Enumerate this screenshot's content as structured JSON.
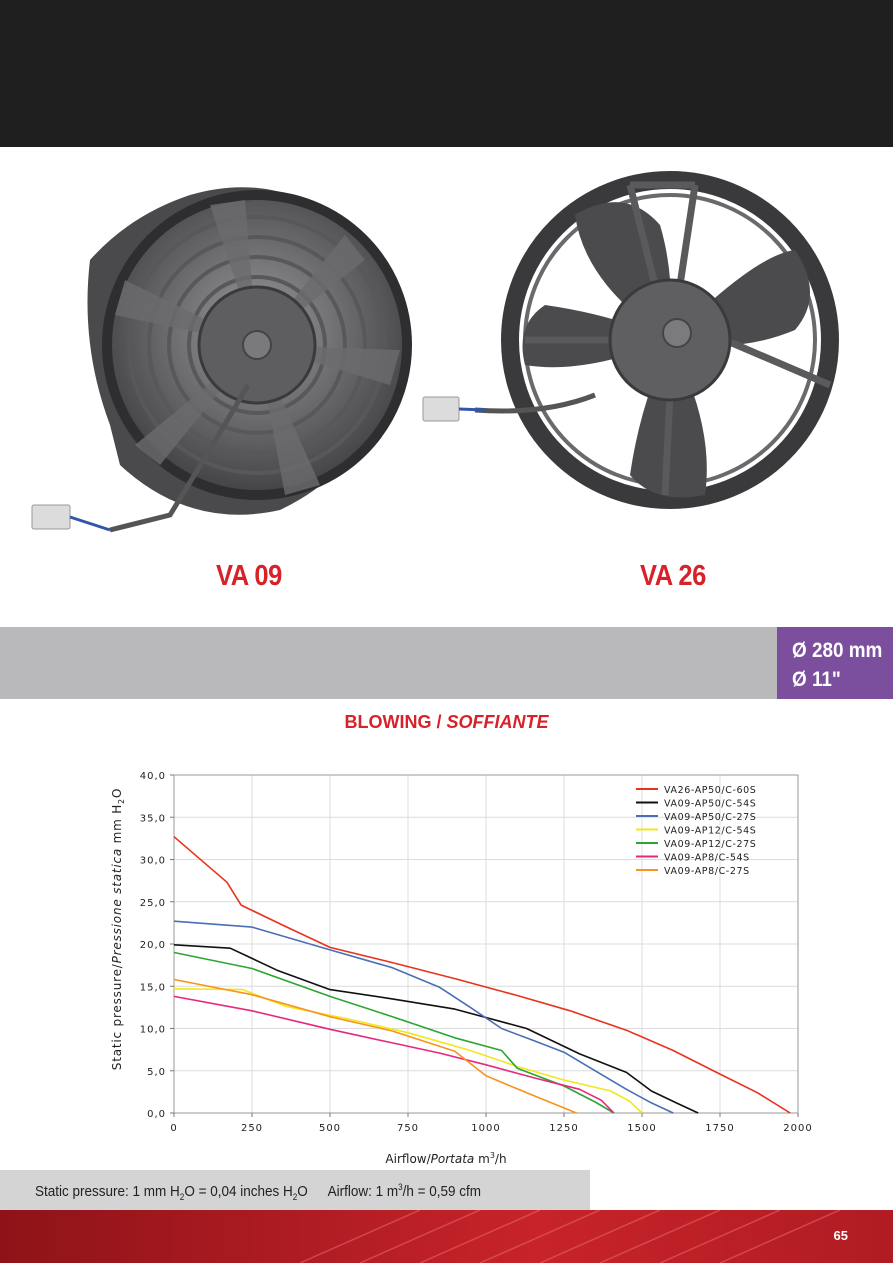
{
  "models": {
    "left": "VA 09",
    "right": "VA 26"
  },
  "size": {
    "mm": "Ø 280 mm",
    "inch": "Ø 11\""
  },
  "title": {
    "main": "BLOWING / ",
    "italic": "SOFFIANTE"
  },
  "axes": {
    "ylabel_plain": "Static pressure/",
    "ylabel_italic": "Pressione statica",
    "ylabel_unit": " mm H",
    "ylabel_sub": "2",
    "ylabel_end": "O",
    "xlabel_plain": "Airflow/",
    "xlabel_italic": "Portata",
    "xlabel_unit": " m",
    "xlabel_sup": "3",
    "xlabel_end": "/h"
  },
  "footer": {
    "p1": "Static pressure: 1 mm H",
    "p1_sub": "2",
    "p2": "O = 0,04 inches H",
    "p2_sub": "2",
    "p3": "O",
    "a1": "Airflow: 1 m",
    "a1_sup": "3",
    "a2": "/h = 0,59 cfm"
  },
  "page_number": "65",
  "colors": {
    "accent_red": "#d8222a",
    "purple": "#7c4f9e",
    "band_gray": "#b9b9bb"
  },
  "chart_data": {
    "type": "line",
    "xlim": [
      0,
      2000
    ],
    "ylim": [
      0,
      40
    ],
    "xticks": [
      0,
      250,
      500,
      750,
      1000,
      1250,
      1500,
      1750,
      2000
    ],
    "xtick_labels": [
      "0",
      "250",
      "500",
      "750",
      "1000",
      "1250",
      "1500",
      "1750",
      "2000"
    ],
    "yticks": [
      0,
      5,
      10,
      15,
      20,
      25,
      30,
      35,
      40
    ],
    "ytick_labels": [
      "0,0",
      "5,0",
      "10,0",
      "15,0",
      "20,0",
      "25,0",
      "30,0",
      "35,0",
      "40,0"
    ],
    "grid": true,
    "legend_position": "top-right",
    "series": [
      {
        "name": "VA26-AP50/C-60S",
        "color": "#e8321e",
        "x": [
          0,
          170,
          215,
          350,
          500,
          700,
          900,
          1100,
          1270,
          1450,
          1600,
          1750,
          1870,
          1975
        ],
        "y": [
          32.7,
          27.3,
          24.6,
          22.2,
          19.6,
          17.8,
          15.9,
          13.9,
          12.1,
          9.8,
          7.4,
          4.6,
          2.4,
          0
        ]
      },
      {
        "name": "VA09-AP50/C-54S",
        "color": "#111111",
        "x": [
          0,
          180,
          250,
          330,
          500,
          700,
          900,
          1130,
          1300,
          1450,
          1530,
          1610,
          1680
        ],
        "y": [
          19.9,
          19.5,
          18.3,
          16.9,
          14.6,
          13.5,
          12.3,
          10.0,
          7.0,
          4.8,
          2.6,
          1.2,
          0
        ]
      },
      {
        "name": "VA09-AP50/C-27S",
        "color": "#4a6fb5",
        "x": [
          0,
          250,
          500,
          700,
          850,
          950,
          1050,
          1150,
          1250,
          1350,
          1450,
          1530,
          1600
        ],
        "y": [
          22.7,
          22.0,
          19.3,
          17.2,
          14.9,
          12.5,
          10.0,
          8.6,
          7.2,
          5.0,
          2.8,
          1.2,
          0
        ]
      },
      {
        "name": "VA09-AP12/C-54S",
        "color": "#f1e81c",
        "x": [
          0,
          220,
          360,
          550,
          750,
          950,
          1100,
          1250,
          1400,
          1460,
          1500
        ],
        "y": [
          14.7,
          14.6,
          12.6,
          11.2,
          9.5,
          7.4,
          5.5,
          3.9,
          2.6,
          1.4,
          0
        ]
      },
      {
        "name": "VA09-AP12/C-27S",
        "color": "#2da532",
        "x": [
          0,
          250,
          500,
          700,
          900,
          1050,
          1100,
          1250,
          1350,
          1410
        ],
        "y": [
          19.0,
          17.1,
          13.8,
          11.4,
          8.9,
          7.4,
          5.3,
          3.2,
          1.3,
          0
        ]
      },
      {
        "name": "VA09-AP8/C-54S",
        "color": "#e6287d",
        "x": [
          0,
          250,
          500,
          700,
          850,
          1000,
          1150,
          1300,
          1370,
          1410
        ],
        "y": [
          13.8,
          12.1,
          9.9,
          8.3,
          7.1,
          5.7,
          4.2,
          2.8,
          1.5,
          0
        ]
      },
      {
        "name": "VA09-AP8/C-27S",
        "color": "#f7941d",
        "x": [
          0,
          250,
          500,
          700,
          900,
          1000,
          1150,
          1290
        ],
        "y": [
          15.8,
          14.0,
          11.4,
          9.7,
          7.3,
          4.4,
          2.1,
          0
        ]
      }
    ]
  }
}
